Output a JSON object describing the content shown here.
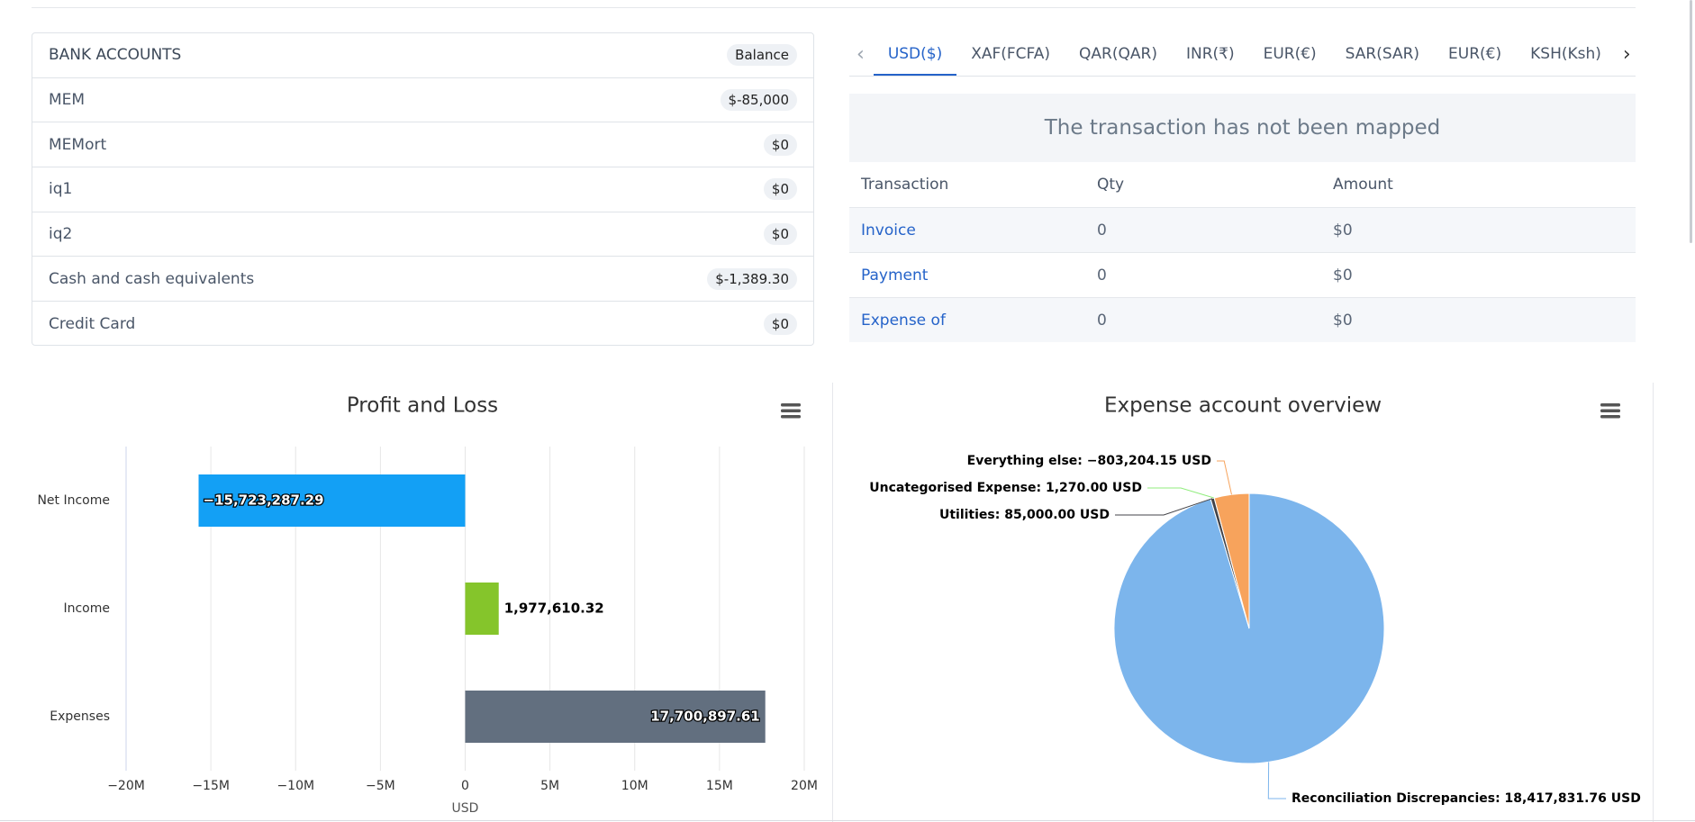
{
  "bank_accounts": {
    "title": "BANK ACCOUNTS",
    "balance_header": "Balance",
    "rows": [
      {
        "name": "MEM",
        "balance": "$-85,000"
      },
      {
        "name": "MEMort",
        "balance": "$0"
      },
      {
        "name": "iq1",
        "balance": "$0"
      },
      {
        "name": "iq2",
        "balance": "$0"
      },
      {
        "name": "Cash and cash equivalents",
        "balance": "$-1,389.30"
      },
      {
        "name": "Credit Card",
        "balance": "$0"
      }
    ]
  },
  "currency_tabs": {
    "active": 0,
    "tabs": [
      "USD($)",
      "XAF(FCFA)",
      "QAR(QAR)",
      "INR(₹)",
      "EUR(€)",
      "SAR(SAR)",
      "EUR(€)",
      "KSH(Ksh)"
    ]
  },
  "transactions": {
    "notice": "The transaction has not been mapped",
    "columns": [
      "Transaction",
      "Qty",
      "Amount"
    ],
    "rows": [
      [
        "Invoice",
        "0",
        "$0"
      ],
      [
        "Payment",
        "0",
        "$0"
      ],
      [
        "Expense of",
        "0",
        "$0"
      ]
    ]
  },
  "chart_data": [
    {
      "type": "bar",
      "title": "Profit and Loss",
      "categories": [
        "Net Income",
        "Income",
        "Expenses"
      ],
      "values": [
        -15723287.29,
        1977610.32,
        17700897.61
      ],
      "value_labels": [
        "−15,723,287.29",
        "1,977,610.32",
        "17,700,897.61"
      ],
      "colors": [
        "#13a0f5",
        "#85c52b",
        "#626f7f"
      ],
      "xlim": [
        -20000000,
        20000000
      ],
      "xticks": [
        {
          "value": -20000000,
          "label": "−20M"
        },
        {
          "value": -15000000,
          "label": "−15M"
        },
        {
          "value": -10000000,
          "label": "−10M"
        },
        {
          "value": -5000000,
          "label": "−5M"
        },
        0,
        {
          "value": 5000000,
          "label": "5M"
        },
        {
          "value": 10000000,
          "label": "10M"
        },
        {
          "value": 15000000,
          "label": "15M"
        },
        {
          "value": 20000000,
          "label": "20M"
        }
      ],
      "xlabel": "USD",
      "grid": true
    },
    {
      "type": "pie",
      "title": "Expense account overview",
      "values": [
        18417831.76,
        85000,
        1270,
        -803204.15
      ],
      "value_labels": [
        "Reconciliation Discrepancies: 18,417,831.76 USD",
        "Utilities: 85,000.00 USD",
        "Uncategorised Expense: 1,270.00 USD",
        "Everything else: −803,204.15 USD"
      ],
      "colors": [
        "#7cb5ec",
        "#434348",
        "#90ed7d",
        "#f7a35c"
      ]
    }
  ]
}
